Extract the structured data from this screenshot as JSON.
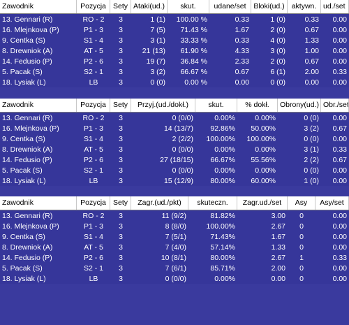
{
  "table1": {
    "headers": [
      "Zawodnik",
      "Pozycja",
      "Sety",
      "Ataki(ud.)",
      "skut.",
      "udane/set",
      "Bloki(ud.)",
      "aktywn.",
      "ud./set"
    ],
    "rows": [
      [
        "13. Gennari (R)",
        "RO - 2",
        "3",
        "1 (1)",
        "100.00 %",
        "0.33",
        "1 (0)",
        "0.33",
        "0.00"
      ],
      [
        "16. Mlejnkova (P)",
        "P1 - 3",
        "3",
        "7 (5)",
        "71.43 %",
        "1.67",
        "2 (0)",
        "0.67",
        "0.00"
      ],
      [
        "9. Centka (S)",
        "S1 - 4",
        "3",
        "3 (1)",
        "33.33 %",
        "0.33",
        "4 (0)",
        "1.33",
        "0.00"
      ],
      [
        "8. Drewniok (A)",
        "AT - 5",
        "3",
        "21 (13)",
        "61.90 %",
        "4.33",
        "3 (0)",
        "1.00",
        "0.00"
      ],
      [
        "14. Fedusio (P)",
        "P2 - 6",
        "3",
        "19 (7)",
        "36.84 %",
        "2.33",
        "2 (0)",
        "0.67",
        "0.00"
      ],
      [
        "5. Pacak (S)",
        "S2 - 1",
        "3",
        "3 (2)",
        "66.67 %",
        "0.67",
        "6 (1)",
        "2.00",
        "0.33"
      ],
      [
        "18. Lysiak (L)",
        "LB",
        "3",
        "0 (0)",
        "0.00 %",
        "0.00",
        "0 (0)",
        "0.00",
        "0.00"
      ]
    ]
  },
  "table2": {
    "headers": [
      "Zawodnik",
      "Pozycja",
      "Sety",
      "Przyj.(ud./dokł.)",
      "skut.",
      "% dokł.",
      "Obrony(ud.)",
      "Obr./set"
    ],
    "rows": [
      [
        "13. Gennari (R)",
        "RO - 2",
        "3",
        "0 (0/0)",
        "0.00%",
        "0.00%",
        "0 (0)",
        "0.00"
      ],
      [
        "16. Mlejnkova (P)",
        "P1 - 3",
        "3",
        "14 (13/7)",
        "92.86%",
        "50.00%",
        "3 (2)",
        "0.67"
      ],
      [
        "9. Centka (S)",
        "S1 - 4",
        "3",
        "2 (2/2)",
        "100.00%",
        "100.00%",
        "0 (0)",
        "0.00"
      ],
      [
        "8. Drewniok (A)",
        "AT - 5",
        "3",
        "0 (0/0)",
        "0.00%",
        "0.00%",
        "3 (1)",
        "0.33"
      ],
      [
        "14. Fedusio (P)",
        "P2 - 6",
        "3",
        "27 (18/15)",
        "66.67%",
        "55.56%",
        "2 (2)",
        "0.67"
      ],
      [
        "5. Pacak (S)",
        "S2 - 1",
        "3",
        "0 (0/0)",
        "0.00%",
        "0.00%",
        "0 (0)",
        "0.00"
      ],
      [
        "18. Lysiak (L)",
        "LB",
        "3",
        "15 (12/9)",
        "80.00%",
        "60.00%",
        "1 (0)",
        "0.00"
      ]
    ]
  },
  "table3": {
    "headers": [
      "Zawodnik",
      "Pozycja",
      "Sety",
      "Zagr.(ud./pkt)",
      "skuteczn.",
      "Zagr.ud./set",
      "Asy",
      "Asy/set"
    ],
    "rows": [
      [
        "13. Gennari (R)",
        "RO - 2",
        "3",
        "11 (9/2)",
        "81.82%",
        "3.00",
        "0",
        "0.00"
      ],
      [
        "16. Mlejnkova (P)",
        "P1 - 3",
        "3",
        "8 (8/0)",
        "100.00%",
        "2.67",
        "0",
        "0.00"
      ],
      [
        "9. Centka (S)",
        "S1 - 4",
        "3",
        "7 (5/1)",
        "71.43%",
        "1.67",
        "0",
        "0.00"
      ],
      [
        "8. Drewniok (A)",
        "AT - 5",
        "3",
        "7 (4/0)",
        "57.14%",
        "1.33",
        "0",
        "0.00"
      ],
      [
        "14. Fedusio (P)",
        "P2 - 6",
        "3",
        "10 (8/1)",
        "80.00%",
        "2.67",
        "1",
        "0.33"
      ],
      [
        "5. Pacak (S)",
        "S2 - 1",
        "3",
        "7 (6/1)",
        "85.71%",
        "2.00",
        "0",
        "0.00"
      ],
      [
        "18. Lysiak (L)",
        "LB",
        "3",
        "0 (0/0)",
        "0.00%",
        "0.00",
        "0",
        "0.00"
      ]
    ]
  }
}
